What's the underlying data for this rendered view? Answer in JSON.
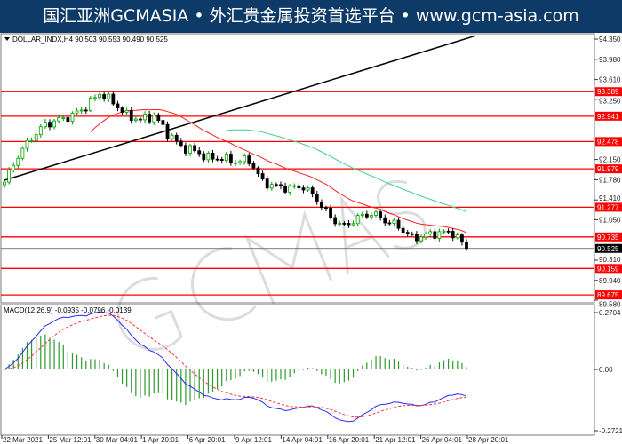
{
  "banner": {
    "text": "国汇亚洲GCMASIA • 外汇贵金属投资首选平台 • www.gcm-asia.com",
    "background": "#0d3a66"
  },
  "watermark": {
    "text": "GCMASIA汇亚洲",
    "subtext": "GLOBAL CAPITAL MARKETS"
  },
  "chart_data": {
    "type": "candlestick",
    "title": "DOLLAR_INDX,H4  90.503 90.553 90.490 90.525",
    "symbol": "DOLLAR_INDX,H4",
    "ohlc_last": {
      "open": 90.503,
      "high": 90.553,
      "low": 90.49,
      "close": 90.525
    },
    "ylim": [
      89.58,
      94.35
    ],
    "y_ticks": [
      "94.350",
      "93.980",
      "93.610",
      "93.250",
      "92.150",
      "91.780",
      "91.410",
      "91.050",
      "90.310",
      "89.940",
      "89.580"
    ],
    "x_ticks": [
      "22 Mar 2021",
      "25 Mar 12:01",
      "30 Mar 04:01",
      "1 Apr 20:01",
      "6 Apr 20:01",
      "9 Apr 12:01",
      "14 Apr 04:01",
      "16 Apr 20:01",
      "21 Apr 12:01",
      "26 Apr 04:01",
      "28 Apr 20:01"
    ],
    "approx_closes": [
      91.736,
      92.223,
      92.548,
      92.792,
      92.873,
      92.954,
      93.116,
      93.36,
      93.197,
      92.954,
      92.873,
      92.954,
      92.629,
      92.386,
      92.304,
      92.175,
      92.175,
      92.11,
      92.142,
      91.736,
      91.655,
      91.623,
      91.655,
      91.412,
      91.087,
      90.925,
      91.087,
      91.168,
      91.038,
      90.925,
      90.714,
      90.763,
      90.811,
      90.811,
      90.525
    ],
    "levels": [
      {
        "label": "93.389",
        "value": 93.389
      },
      {
        "label": "92.941",
        "value": 92.941
      },
      {
        "label": "92.478",
        "value": 92.478
      },
      {
        "label": "91.979",
        "value": 91.979
      },
      {
        "label": "91.277",
        "value": 91.277
      },
      {
        "label": "90.735",
        "value": 90.735
      },
      {
        "label": "90.159",
        "value": 90.159
      },
      {
        "label": "89.675",
        "value": 89.675
      }
    ],
    "current_price": {
      "label": "90.525",
      "value": 90.525
    },
    "trendline": {
      "start": 91.77,
      "end": 94.41,
      "color": "#000000"
    },
    "moving_averages": [
      {
        "color": "#ff2020"
      },
      {
        "color": "#40d090"
      }
    ],
    "macd": {
      "title": "MACD(12,26,9) -0.0935 -0.0796 -0.0139",
      "y_ticks": [
        "0.2704",
        "0.00",
        "-0.2721"
      ],
      "ylim": [
        -0.2721,
        0.2704
      ],
      "main_color": "#2a2aff",
      "signal_color": "#ff3030",
      "hist_color": "#2e9a2e"
    },
    "colors": {
      "bull": "#00a000",
      "bear": "#000000",
      "level": "#ff0000"
    }
  }
}
